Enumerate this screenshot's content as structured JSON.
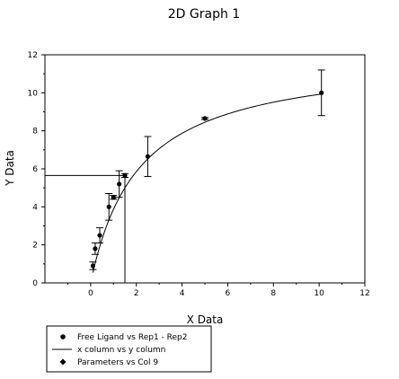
{
  "chart_data": {
    "type": "scatter",
    "title": "2D Graph 1",
    "xlabel": "X Data",
    "ylabel": "Y Data",
    "xlim": [
      -2,
      12
    ],
    "ylim": [
      0,
      12
    ],
    "xticks": [
      0,
      2,
      4,
      6,
      8,
      10,
      12
    ],
    "yticks": [
      0,
      2,
      4,
      6,
      8,
      10,
      12
    ],
    "xtick_labels": [
      "0",
      "2",
      "4",
      "6",
      "8",
      "10",
      "12"
    ],
    "ytick_labels": [
      "0",
      "2",
      "4",
      "6",
      "8",
      "10",
      "12"
    ],
    "grid": false,
    "legend_position": "bottom-left",
    "legend": [
      {
        "label": "Free Ligand vs Rep1 - Rep2",
        "marker": "circle"
      },
      {
        "label": "x column vs y column",
        "marker": "line"
      },
      {
        "label": "Parameters vs Col 9",
        "marker": "diamond"
      }
    ],
    "series": [
      {
        "name": "Free Ligand vs Rep1 - Rep2",
        "kind": "points-with-error",
        "points": [
          {
            "x": 0.1,
            "y": 0.9,
            "err": 0.2
          },
          {
            "x": 0.2,
            "y": 1.8,
            "err": 0.3
          },
          {
            "x": 0.4,
            "y": 2.5,
            "err": 0.4
          },
          {
            "x": 0.8,
            "y": 4.0,
            "err": 0.7
          },
          {
            "x": 1.0,
            "y": 4.5,
            "err": 0.1
          },
          {
            "x": 1.25,
            "y": 5.2,
            "err": 0.7
          },
          {
            "x": 1.5,
            "y": 5.65,
            "err": 0.1
          },
          {
            "x": 2.5,
            "y": 6.65,
            "err": 1.05
          },
          {
            "x": 5.0,
            "y": 8.65,
            "err": 0.05
          },
          {
            "x": 10.1,
            "y": 10.0,
            "err": 1.2
          }
        ]
      },
      {
        "name": "x column vs y column",
        "kind": "fit-curve",
        "bmax": 12.0,
        "kd": 2.1,
        "x_start": 0.1,
        "x_end": 10.1
      },
      {
        "name": "Parameters vs Col 9",
        "kind": "reference-lines",
        "x": 1.5,
        "y": 5.65
      }
    ]
  }
}
